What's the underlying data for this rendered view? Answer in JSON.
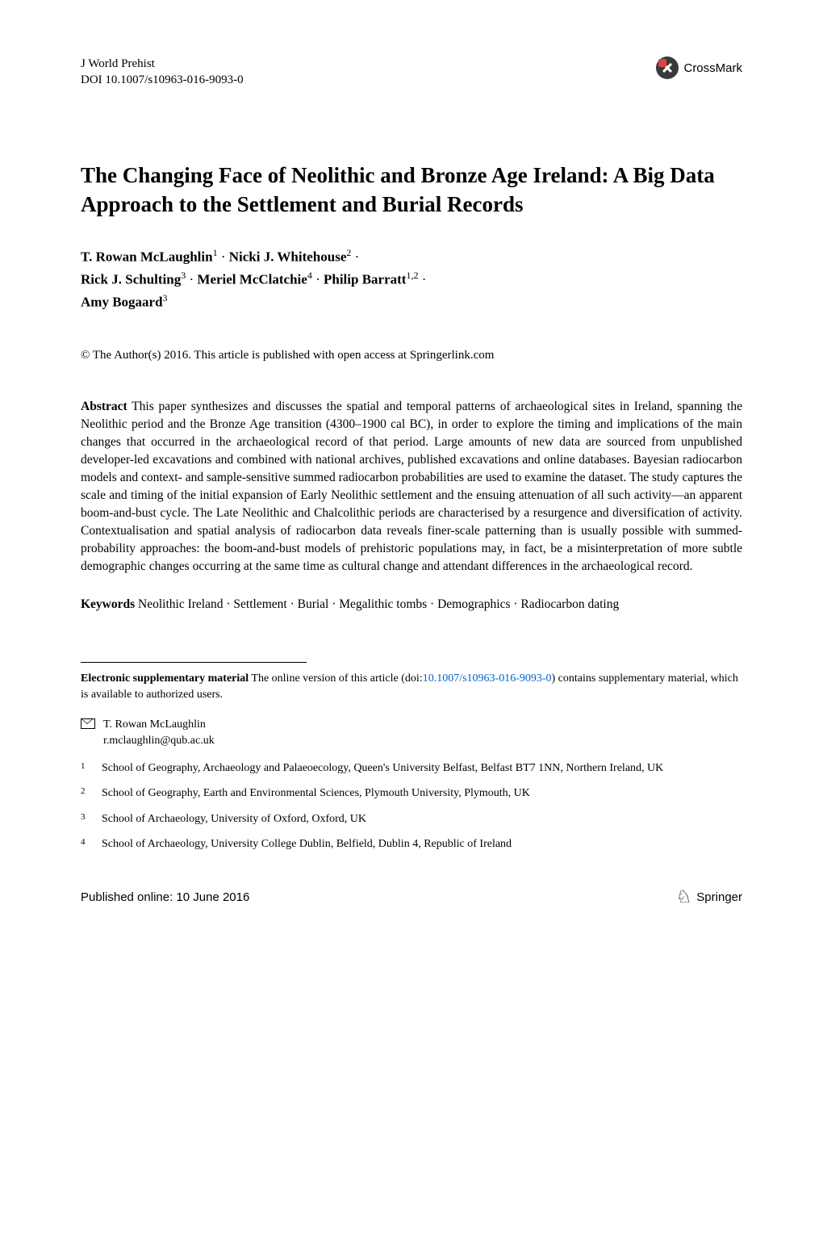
{
  "header": {
    "journal": "J World Prehist",
    "doi": "DOI 10.1007/s10963-016-9093-0",
    "crossmark": "CrossMark"
  },
  "title": "The Changing Face of Neolithic and Bronze Age Ireland: A Big Data Approach to the Settlement and Burial Records",
  "authors": {
    "a1": "T. Rowan McLaughlin",
    "s1": "1",
    "a2": "Nicki J. Whitehouse",
    "s2": "2",
    "a3": "Rick J. Schulting",
    "s3": "3",
    "a4": "Meriel McClatchie",
    "s4": "4",
    "a5": "Philip Barratt",
    "s5": "1,2",
    "a6": "Amy Bogaard",
    "s6": "3"
  },
  "copyright": "© The Author(s) 2016. This article is published with open access at Springerlink.com",
  "abstract": {
    "label": "Abstract",
    "text": " This paper synthesizes and discusses the spatial and temporal patterns of archaeological sites in Ireland, spanning the Neolithic period and the Bronze Age transition (4300–1900 cal BC), in order to explore the timing and implications of the main changes that occurred in the archaeological record of that period. Large amounts of new data are sourced from unpublished developer-led excavations and combined with national archives, published excavations and online databases. Bayesian radiocarbon models and context- and sample-sensitive summed radiocarbon probabilities are used to examine the dataset. The study captures the scale and timing of the initial expansion of Early Neolithic settlement and the ensuing attenuation of all such activity—an apparent boom-and-bust cycle. The Late Neolithic and Chalcolithic periods are characterised by a resurgence and diversification of activity. Contextualisation and spatial analysis of radiocarbon data reveals finer-scale patterning than is usually possible with summed-probability approaches: the boom-and-bust models of prehistoric populations may, in fact, be a misinterpretation of more subtle demographic changes occurring at the same time as cultural change and attendant differences in the archaeological record."
  },
  "keywords": {
    "label": "Keywords",
    "text": " Neolithic Ireland · Settlement · Burial · Megalithic tombs · Demographics · Radiocarbon dating"
  },
  "supplementary": {
    "label": "Electronic supplementary material",
    "text_before": " The online version of this article (doi:",
    "doi_link": "10.1007/s10963-016-9093-0",
    "text_after": ") contains supplementary material, which is available to authorized users."
  },
  "corresponding": {
    "name": "T. Rowan McLaughlin",
    "email": "r.mclaughlin@qub.ac.uk"
  },
  "affiliations": [
    {
      "num": "1",
      "text": "School of Geography, Archaeology and Palaeoecology, Queen's University Belfast, Belfast BT7 1NN, Northern Ireland, UK"
    },
    {
      "num": "2",
      "text": "School of Geography, Earth and Environmental Sciences, Plymouth University, Plymouth, UK"
    },
    {
      "num": "3",
      "text": "School of Archaeology, University of Oxford, Oxford, UK"
    },
    {
      "num": "4",
      "text": "School of Archaeology, University College Dublin, Belfield, Dublin 4, Republic of Ireland"
    }
  ],
  "footer": {
    "published": "Published online: 10 June 2016",
    "publisher": "Springer"
  }
}
